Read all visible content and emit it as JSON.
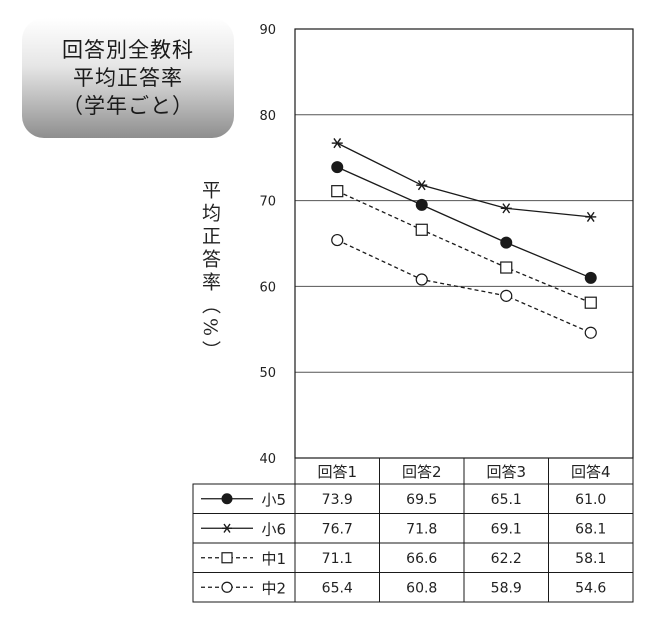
{
  "title_lines": [
    "回答別全教科",
    "平均正答率",
    "（学年ごと）"
  ],
  "chart_data": {
    "type": "line",
    "title": "回答別全教科 平均正答率（学年ごと）",
    "ylabel": "平均正答率（%）",
    "xlabel": "",
    "ylim": [
      40,
      90
    ],
    "yticks": [
      "40",
      "50",
      "60",
      "70",
      "80",
      "90"
    ],
    "grid": true,
    "legend": "table-below",
    "categories": [
      "回答1",
      "回答2",
      "回答3",
      "回答4"
    ],
    "series": [
      {
        "name": "小5",
        "values": [
          73.9,
          69.5,
          65.1,
          61.0
        ],
        "line": "solid",
        "marker": "filled-circle",
        "labels": [
          "73.9",
          "69.5",
          "65.1",
          "61.0"
        ]
      },
      {
        "name": "小6",
        "values": [
          76.7,
          71.8,
          69.1,
          68.1
        ],
        "line": "solid",
        "marker": "asterisk",
        "labels": [
          "76.7",
          "71.8",
          "69.1",
          "68.1"
        ]
      },
      {
        "name": "中1",
        "values": [
          71.1,
          66.6,
          62.2,
          58.1
        ],
        "line": "dashed",
        "marker": "open-square",
        "labels": [
          "71.1",
          "66.6",
          "62.2",
          "58.1"
        ]
      },
      {
        "name": "中2",
        "values": [
          65.4,
          60.8,
          58.9,
          54.6
        ],
        "line": "dashed",
        "marker": "open-circle",
        "labels": [
          "65.4",
          "60.8",
          "58.9",
          "54.6"
        ]
      }
    ]
  },
  "colors": {
    "line": "#1a1a1a",
    "grid": "#555555",
    "background": "#ffffff"
  }
}
